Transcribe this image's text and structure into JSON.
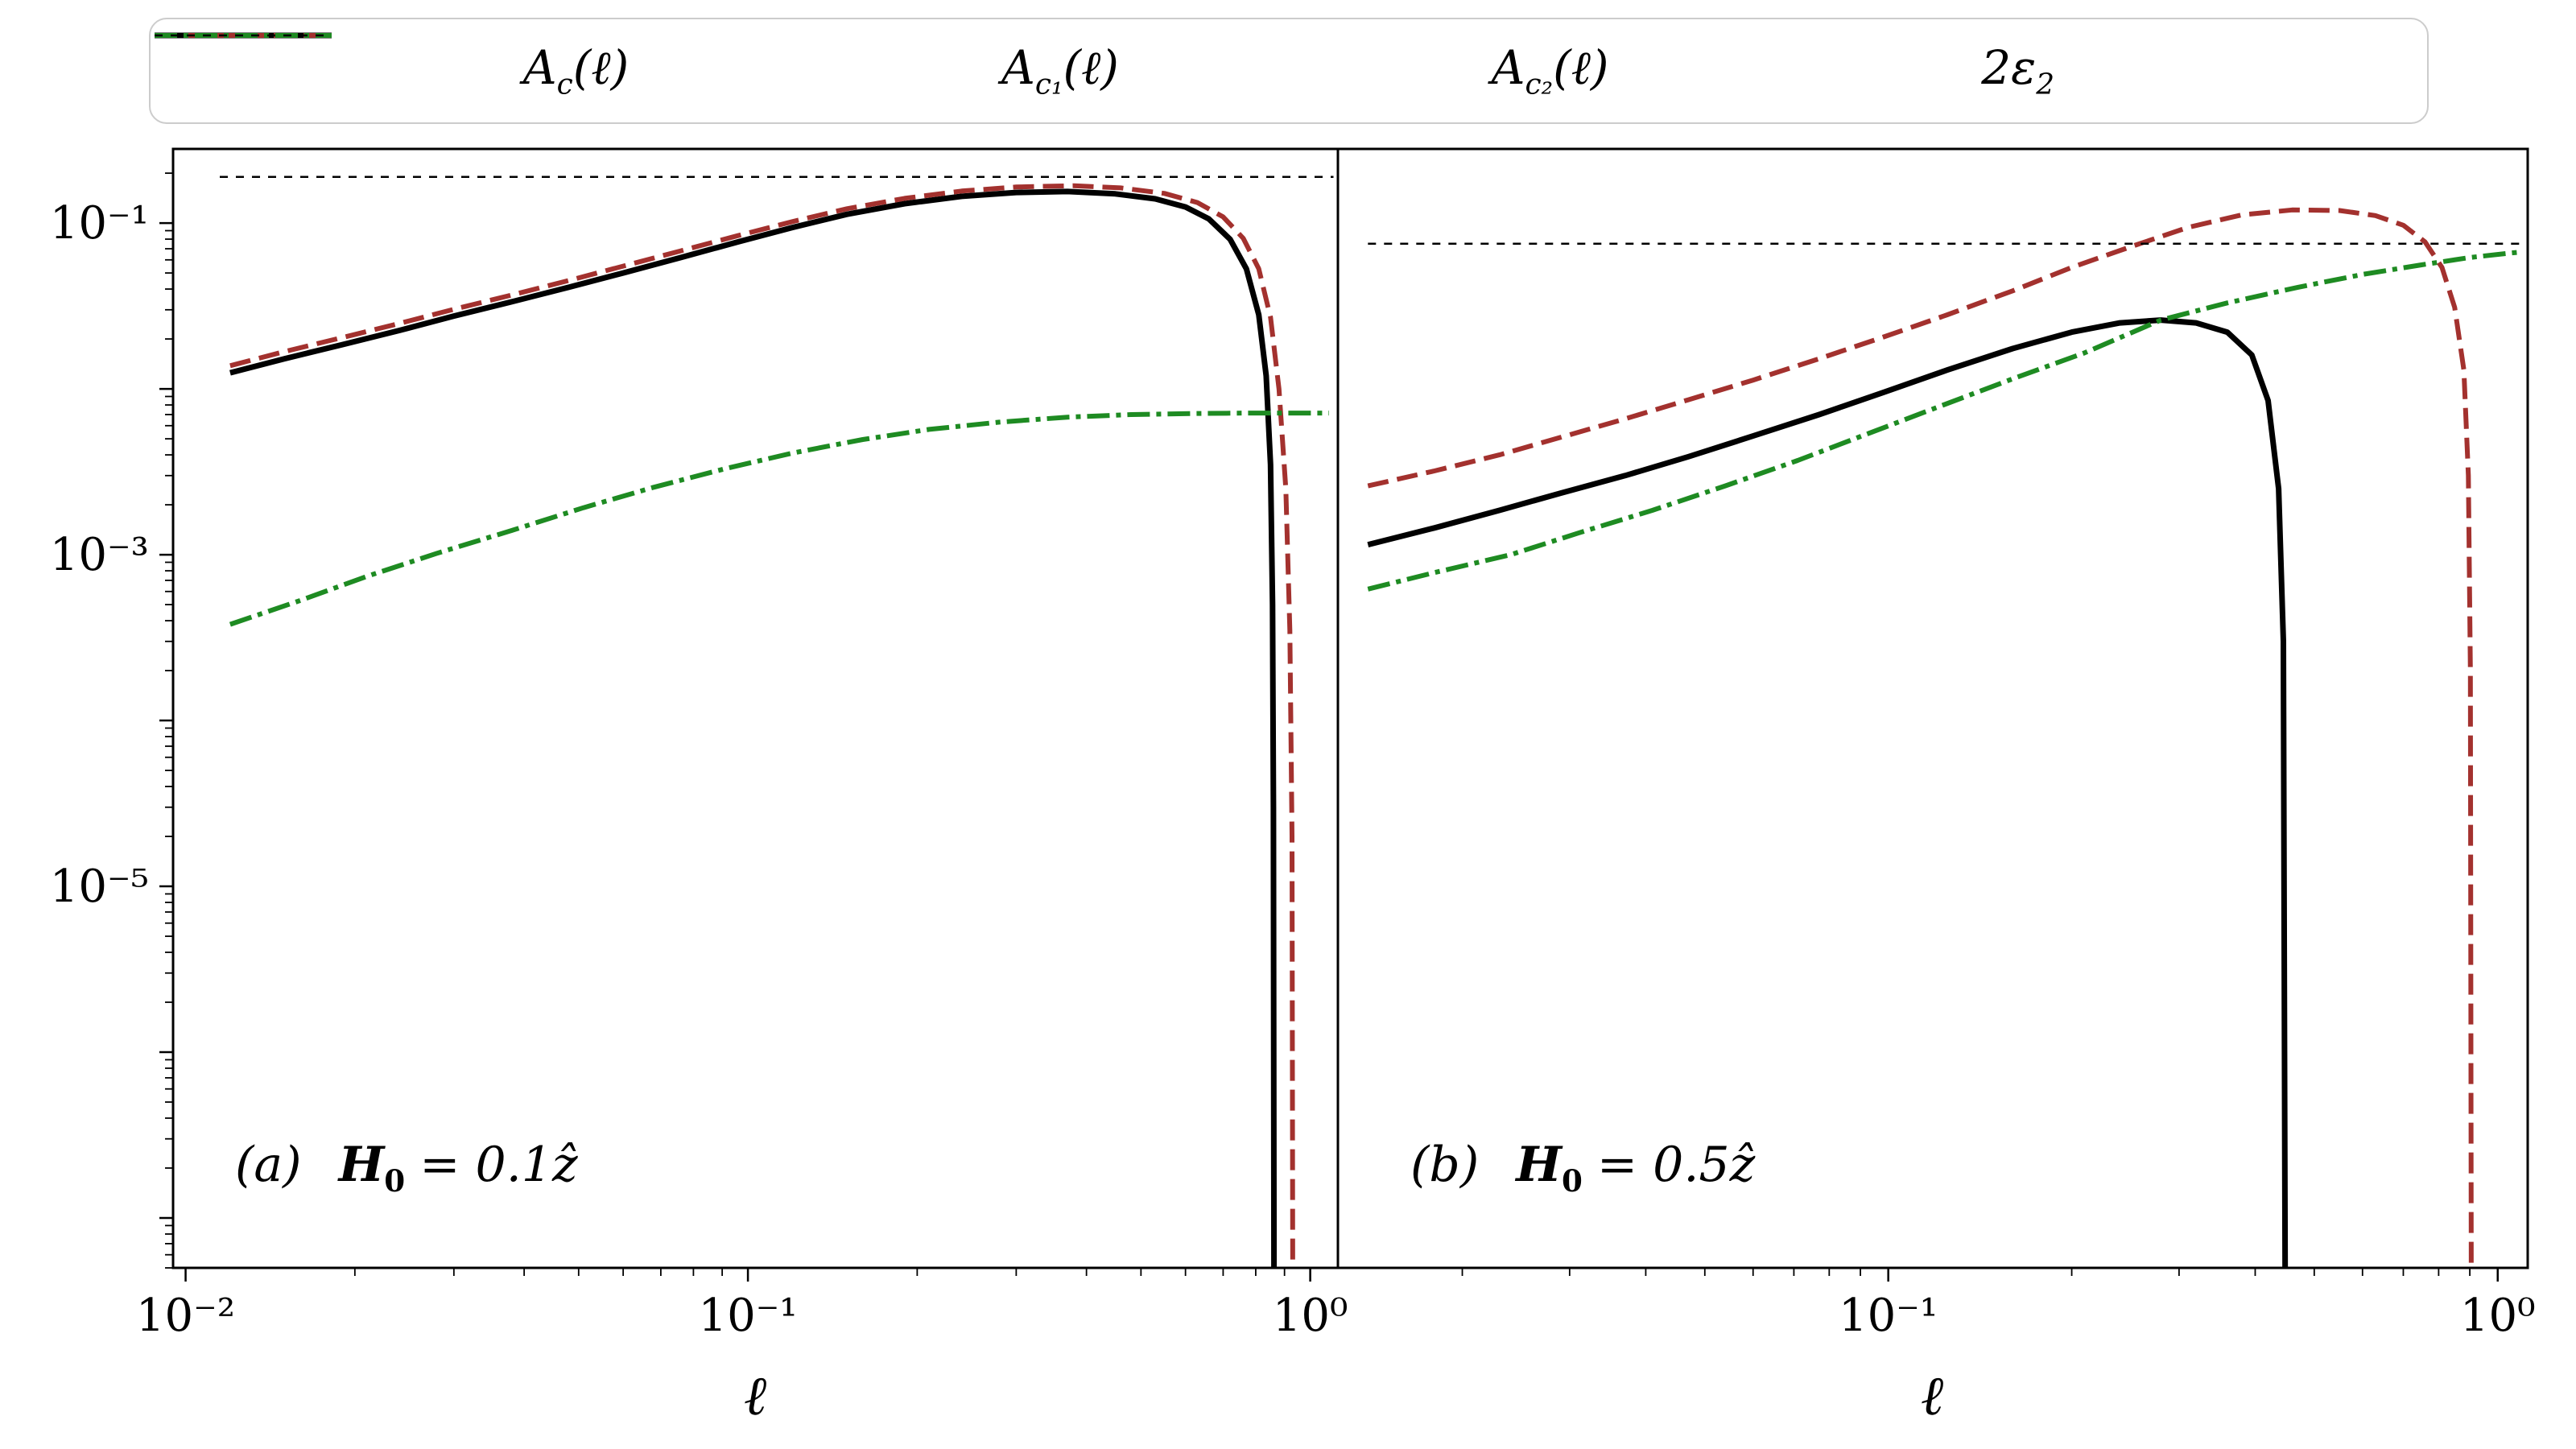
{
  "colors": {
    "black": "#000000",
    "red": "#a3312e",
    "green": "#1e8b22",
    "legend_border": "#cccccc"
  },
  "legend": {
    "entries": [
      {
        "base": "A",
        "sub": "c",
        "args": "(ℓ)",
        "color": "#000000",
        "dash": "",
        "width": 7
      },
      {
        "base": "A",
        "sub": "c₁",
        "args": "(ℓ)",
        "color": "#a3312e",
        "dash": "26 11",
        "width": 6
      },
      {
        "base": "A",
        "sub": "c₂",
        "args": "(ℓ)",
        "color": "#1e8b22",
        "dash": "28 8 6 8",
        "width": 6
      },
      {
        "base": "2ε",
        "sub": "2",
        "args": "",
        "color": "#000000",
        "dash": "10 10",
        "width": 2.5
      }
    ]
  },
  "chart_data": [
    {
      "type": "line",
      "panel": "a",
      "xscale": "log",
      "yscale": "log",
      "xlabel": "ℓ",
      "xlim": [
        0.0095,
        1.12
      ],
      "ylim": [
        5e-08,
        0.28
      ],
      "xtick_labels": {
        "-2": "10⁻²",
        "-1": "10⁻¹",
        "0": "10⁰"
      },
      "ytick_labels": {
        "-1": "10⁻¹",
        "-3": "10⁻³",
        "-5": "10⁻⁵"
      },
      "annotation": {
        "index": "(a)",
        "H": "H",
        "Hsub": "0",
        "value": "= 0.1ẑ"
      },
      "series": [
        {
          "name": "Ac",
          "label": "A_c(l)",
          "color": "#000000",
          "dash": "",
          "width": 7,
          "x": [
            0.012,
            0.015,
            0.019,
            0.024,
            0.03,
            0.038,
            0.048,
            0.06,
            0.076,
            0.096,
            0.12,
            0.15,
            0.19,
            0.24,
            0.3,
            0.37,
            0.45,
            0.53,
            0.6,
            0.66,
            0.72,
            0.77,
            0.81,
            0.835,
            0.85,
            0.857,
            0.86,
            0.862
          ],
          "y": [
            0.0125,
            0.0152,
            0.0185,
            0.0225,
            0.0275,
            0.0335,
            0.041,
            0.05,
            0.062,
            0.077,
            0.094,
            0.113,
            0.131,
            0.145,
            0.153,
            0.155,
            0.15,
            0.14,
            0.125,
            0.106,
            0.08,
            0.053,
            0.028,
            0.012,
            0.0035,
            0.0005,
            3e-05,
            4e-08
          ]
        },
        {
          "name": "Ac1",
          "label": "A_c1(l)",
          "color": "#a3312e",
          "dash": "26 11",
          "width": 6,
          "x": [
            0.012,
            0.015,
            0.019,
            0.024,
            0.03,
            0.038,
            0.048,
            0.06,
            0.076,
            0.096,
            0.12,
            0.15,
            0.19,
            0.24,
            0.3,
            0.38,
            0.46,
            0.55,
            0.63,
            0.7,
            0.76,
            0.81,
            0.85,
            0.88,
            0.905,
            0.92,
            0.928,
            0.931
          ],
          "y": [
            0.0138,
            0.0168,
            0.0204,
            0.0248,
            0.0302,
            0.0368,
            0.045,
            0.055,
            0.068,
            0.084,
            0.102,
            0.122,
            0.141,
            0.156,
            0.165,
            0.168,
            0.163,
            0.151,
            0.133,
            0.109,
            0.081,
            0.053,
            0.027,
            0.01,
            0.0025,
            0.00035,
            2e-05,
            4e-08
          ]
        },
        {
          "name": "Ac2",
          "label": "A_c2(l)",
          "color": "#1e8b22",
          "dash": "28 8 6 8",
          "width": 6,
          "x": [
            0.012,
            0.016,
            0.021,
            0.028,
            0.038,
            0.051,
            0.068,
            0.091,
            0.12,
            0.16,
            0.21,
            0.28,
            0.37,
            0.48,
            0.62,
            0.78,
            0.95,
            1.08
          ],
          "y": [
            0.00038,
            0.00053,
            0.00074,
            0.00102,
            0.0014,
            0.00192,
            0.00255,
            0.0033,
            0.0041,
            0.00495,
            0.0057,
            0.0063,
            0.00675,
            0.007,
            0.0071,
            0.00715,
            0.00715,
            0.00715
          ]
        },
        {
          "name": "eps2",
          "label": "2eps2",
          "color": "#000000",
          "dash": "10 10",
          "width": 2.5,
          "x": [
            0.0115,
            1.1
          ],
          "y": [
            0.19,
            0.19
          ]
        }
      ]
    },
    {
      "type": "line",
      "panel": "b",
      "xscale": "log",
      "yscale": "log",
      "xlabel": "ℓ",
      "xlim": [
        0.0125,
        1.12
      ],
      "ylim": [
        5e-08,
        0.28
      ],
      "xtick_labels": {
        "-1": "10⁻¹",
        "0": "10⁰"
      },
      "ytick_labels": {},
      "annotation": {
        "index": "(b)",
        "H": "H",
        "Hsub": "0",
        "value": "= 0.5ẑ"
      },
      "series": [
        {
          "name": "Ac",
          "label": "A_c(l)",
          "color": "#000000",
          "dash": "",
          "width": 7,
          "x": [
            0.014,
            0.018,
            0.023,
            0.029,
            0.037,
            0.047,
            0.06,
            0.077,
            0.098,
            0.125,
            0.16,
            0.2,
            0.24,
            0.28,
            0.32,
            0.36,
            0.395,
            0.42,
            0.437,
            0.445,
            0.448
          ],
          "y": [
            0.00115,
            0.00145,
            0.00185,
            0.00235,
            0.003,
            0.0039,
            0.0052,
            0.007,
            0.0095,
            0.013,
            0.0175,
            0.022,
            0.025,
            0.026,
            0.025,
            0.022,
            0.016,
            0.0085,
            0.0025,
            0.0003,
            4e-08
          ]
        },
        {
          "name": "Ac1",
          "label": "A_c1(l)",
          "color": "#a3312e",
          "dash": "26 11",
          "width": 6,
          "x": [
            0.014,
            0.018,
            0.023,
            0.029,
            0.037,
            0.047,
            0.06,
            0.077,
            0.098,
            0.125,
            0.16,
            0.2,
            0.25,
            0.31,
            0.38,
            0.46,
            0.55,
            0.63,
            0.7,
            0.76,
            0.81,
            0.85,
            0.88,
            0.895,
            0.902,
            0.905
          ],
          "y": [
            0.0026,
            0.0032,
            0.004,
            0.0051,
            0.0066,
            0.0086,
            0.0113,
            0.0152,
            0.0205,
            0.028,
            0.039,
            0.054,
            0.072,
            0.094,
            0.112,
            0.12,
            0.119,
            0.111,
            0.097,
            0.077,
            0.054,
            0.031,
            0.013,
            0.003,
            0.0002,
            4e-08
          ]
        },
        {
          "name": "Ac2",
          "label": "A_c2(l)",
          "color": "#1e8b22",
          "dash": "28 8 6 8",
          "width": 6,
          "x": [
            0.014,
            0.018,
            0.024,
            0.031,
            0.041,
            0.054,
            0.071,
            0.093,
            0.122,
            0.16,
            0.21,
            0.28,
            0.36,
            0.47,
            0.6,
            0.75,
            0.9,
            1.05,
            1.1
          ],
          "y": [
            0.00062,
            0.00078,
            0.001,
            0.00135,
            0.00185,
            0.0026,
            0.0037,
            0.0054,
            0.0079,
            0.0115,
            0.0165,
            0.026,
            0.033,
            0.041,
            0.049,
            0.056,
            0.062,
            0.066,
            0.067
          ]
        },
        {
          "name": "eps2",
          "label": "2eps2",
          "color": "#000000",
          "dash": "10 10",
          "width": 2.5,
          "x": [
            0.014,
            1.1
          ],
          "y": [
            0.075,
            0.075
          ]
        }
      ]
    }
  ]
}
